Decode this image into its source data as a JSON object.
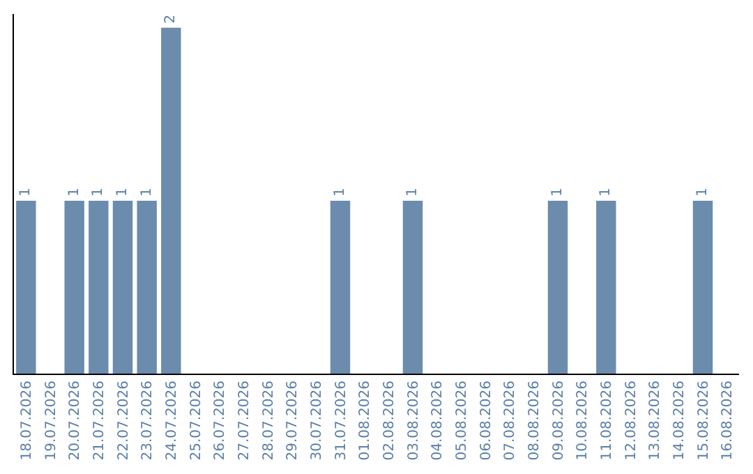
{
  "chart_data": {
    "type": "bar",
    "categories": [
      "18.07.2026",
      "19.07.2026",
      "20.07.2026",
      "21.07.2026",
      "22.07.2026",
      "23.07.2026",
      "24.07.2026",
      "25.07.2026",
      "26.07.2026",
      "27.07.2026",
      "28.07.2026",
      "29.07.2026",
      "30.07.2026",
      "31.07.2026",
      "01.08.2026",
      "02.08.2026",
      "03.08.2026",
      "04.08.2026",
      "05.08.2026",
      "06.08.2026",
      "07.08.2026",
      "08.08.2026",
      "09.08.2026",
      "10.08.2026",
      "11.08.2026",
      "12.08.2026",
      "13.08.2026",
      "14.08.2026",
      "15.08.2026",
      "16.08.2026"
    ],
    "values": [
      1,
      0,
      1,
      1,
      1,
      1,
      2,
      0,
      0,
      0,
      0,
      0,
      0,
      1,
      0,
      0,
      1,
      0,
      0,
      0,
      0,
      0,
      1,
      0,
      1,
      0,
      0,
      0,
      1,
      0
    ],
    "value_labels": [
      "1",
      null,
      "1",
      "1",
      "1",
      "1",
      "2",
      null,
      null,
      null,
      null,
      null,
      null,
      "1",
      null,
      null,
      "1",
      null,
      null,
      null,
      null,
      null,
      "1",
      null,
      "1",
      null,
      null,
      null,
      "1",
      null
    ],
    "color": "#6b8cad",
    "ylim": [
      0,
      2.08
    ],
    "grid": false,
    "legend": false
  }
}
